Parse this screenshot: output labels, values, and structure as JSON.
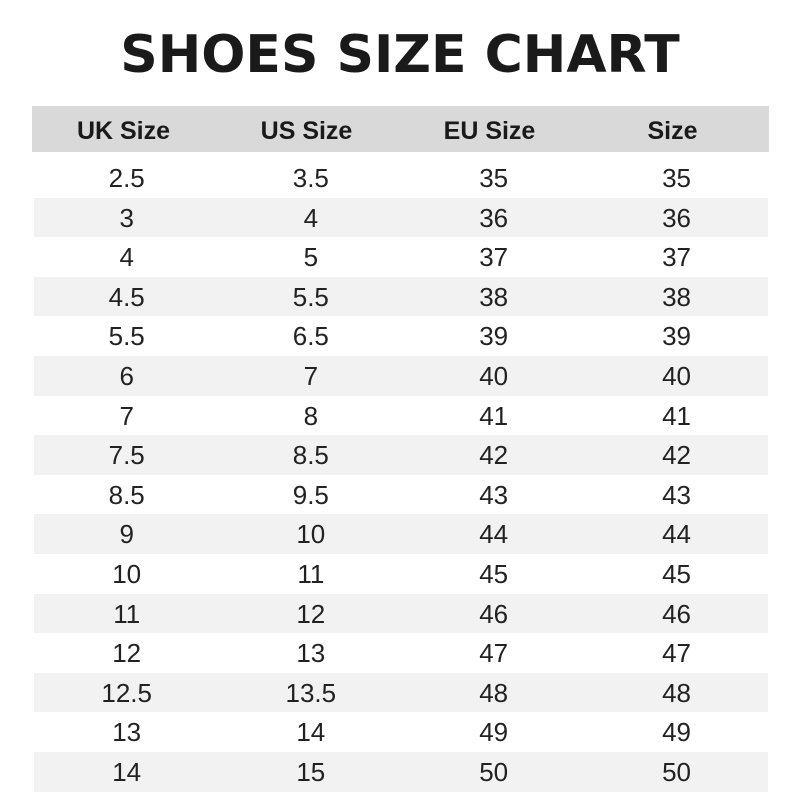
{
  "title": "SHOES SIZE CHART",
  "colors": {
    "header_bg": "#d9d9d9",
    "stripe_bg": "#f2f2f2",
    "text": "#1a1a1a"
  },
  "chart_data": {
    "type": "table",
    "title": "SHOES SIZE CHART",
    "columns": [
      "UK Size",
      "US Size",
      "EU Size",
      "Size"
    ],
    "rows": [
      [
        "2.5",
        "3.5",
        "35",
        "35"
      ],
      [
        "3",
        "4",
        "36",
        "36"
      ],
      [
        "4",
        "5",
        "37",
        "37"
      ],
      [
        "4.5",
        "5.5",
        "38",
        "38"
      ],
      [
        "5.5",
        "6.5",
        "39",
        "39"
      ],
      [
        "6",
        "7",
        "40",
        "40"
      ],
      [
        "7",
        "8",
        "41",
        "41"
      ],
      [
        "7.5",
        "8.5",
        "42",
        "42"
      ],
      [
        "8.5",
        "9.5",
        "43",
        "43"
      ],
      [
        "9",
        "10",
        "44",
        "44"
      ],
      [
        "10",
        "11",
        "45",
        "45"
      ],
      [
        "11",
        "12",
        "46",
        "46"
      ],
      [
        "12",
        "13",
        "47",
        "47"
      ],
      [
        "12.5",
        "13.5",
        "48",
        "48"
      ],
      [
        "13",
        "14",
        "49",
        "49"
      ],
      [
        "14",
        "15",
        "50",
        "50"
      ]
    ]
  }
}
